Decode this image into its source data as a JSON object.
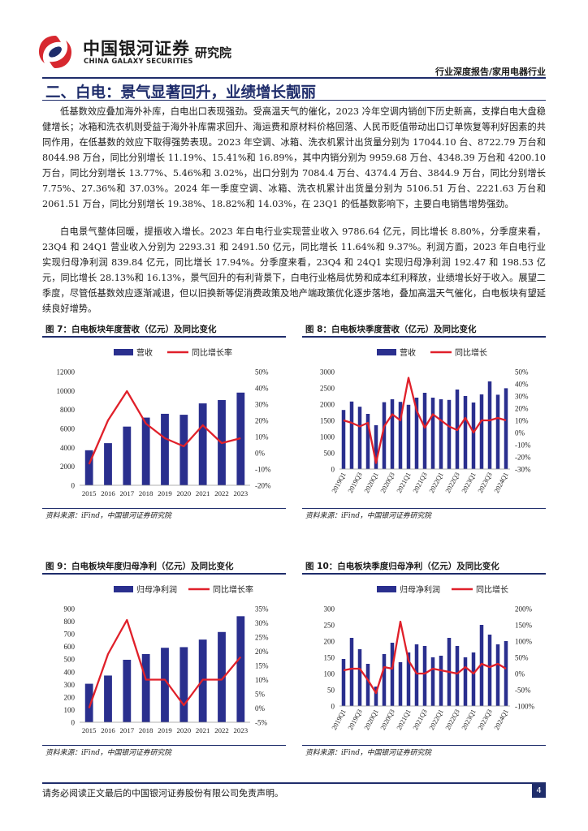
{
  "header": {
    "brand_cn": "中国银河证券",
    "brand_en": "CHINA GALAXY SECURITIES",
    "brand_sub": "研究院",
    "report_type": "行业深度报告/家用电器行业"
  },
  "section": {
    "title": "二、白电：景气显著回升，业绩增长靓丽"
  },
  "paragraphs": [
    "低基数效应叠加海外补库，白电出口表现强劲。受高温天气的催化，2023 冷年空调内销创下历史新高，支撑白电大盘稳健增长；冰箱和洗衣机则受益于海外补库需求回升、海运费和原材料价格回落、人民币贬值带动出口订单恢复等利好因素的共同作用，在低基数的效应下取得强势表现。2023 年空调、冰箱、洗衣机累计出货量分别为 17044.10 台、8722.79 万台和 8044.98 万台，同比分别增长 11.19%、15.41%和 16.89%，其中内销分别为 9959.68 万台、4348.39 万台和 4200.10 万台，同比分别增长 13.77%、5.46%和 3.02%，出口分别为 7084.4 万台、4374.4 万台、3844.9 万台，同比分别增长 7.75%、27.36%和 37.03%。2024 年一季度空调、冰箱、洗衣机累计出货量分别为 5106.51 万台、2221.63 万台和 2061.51 万台，同比分别增长 19.38%、18.82%和 14.03%，在 23Q1 的低基数影响下，主要白电销售增势强劲。",
    "白电景气整体回暖，提振收入增长。2023 年白电行业实现营业收入 9786.64 亿元，同比增长 8.80%，分季度来看，23Q4 和 24Q1 营业收入分别为 2293.31 和 2491.50 亿元，同比增长 11.64%和 9.37%。利润方面，2023 年白电行业实现归母净利润 839.84 亿元，同比增长 17.94%。分季度来看，23Q4 和 24Q1 实现归母净利润 192.47 和 198.53 亿元，同比增长 28.13%和 16.13%，景气回升的有利背景下，白电行业格局优势和成本红利释放，业绩增长好于收入。展望二季度，尽管低基数效应逐渐减退，但以旧换新等促消费政策及地产端政策优化逐步落地，叠加高温天气催化，白电板块有望延续良好增势。"
  ],
  "charts": [
    {
      "title": "图 7：白电板块年度营收（亿元）及同比变化",
      "source": "资料来源：iFind，中国银河证券研究院",
      "legend_bar": "营收",
      "legend_line": "同比增长率",
      "chart_data": {
        "type": "bar+line",
        "categories": [
          "2015",
          "2016",
          "2017",
          "2018",
          "2019",
          "2020",
          "2021",
          "2022",
          "2023"
        ],
        "bar_values": [
          3700,
          4450,
          6200,
          7150,
          7550,
          7450,
          8650,
          9000,
          9790
        ],
        "line_values": [
          -7,
          20,
          38,
          18,
          9,
          4,
          17,
          6,
          9
        ],
        "ylim_left": [
          0,
          12000
        ],
        "yticks_left": [
          "0",
          "2000",
          "4000",
          "6000",
          "8000",
          "10000",
          "12000"
        ],
        "ylim_right": [
          -20,
          50
        ],
        "yticks_right": [
          "-20%",
          "-10%",
          "0%",
          "10%",
          "20%",
          "30%",
          "40%",
          "50%"
        ]
      }
    },
    {
      "title": "图 8：白电板块季度营收（亿元）及同比变化",
      "source": "资料来源：iFind，中国银河证券研究院",
      "legend_bar": "营收",
      "legend_line": "同比增长",
      "chart_data": {
        "type": "bar+line",
        "categories": [
          "2019Q1",
          "2019Q2",
          "2019Q3",
          "2019Q4",
          "2020Q1",
          "2020Q2",
          "2020Q3",
          "2020Q4",
          "2021Q1",
          "2021Q2",
          "2021Q3",
          "2021Q4",
          "2022Q1",
          "2022Q2",
          "2022Q3",
          "2022Q4",
          "2023Q1",
          "2023Q2",
          "2023Q3",
          "2023Q4",
          "2024Q1"
        ],
        "x_tick_labels": [
          "2019Q1",
          "",
          "2019Q3",
          "",
          "2020Q1",
          "",
          "2020Q3",
          "",
          "2021Q1",
          "",
          "2021Q3",
          "",
          "2022Q1",
          "",
          "2022Q3",
          "",
          "2023Q1",
          "",
          "2023Q3",
          "",
          "2024Q1"
        ],
        "bar_values": [
          1820,
          2080,
          1920,
          1700,
          1350,
          2060,
          2150,
          2070,
          1980,
          2200,
          2350,
          2200,
          2150,
          2130,
          2450,
          2250,
          2050,
          2300,
          2700,
          2290,
          2490
        ],
        "line_values": [
          10,
          8,
          5,
          8,
          -25,
          5,
          15,
          10,
          45,
          18,
          4,
          15,
          10,
          5,
          2,
          12,
          0,
          10,
          10,
          12,
          10
        ],
        "ylim_left": [
          0,
          3000
        ],
        "yticks_left": [
          "0",
          "500",
          "1000",
          "1500",
          "2000",
          "2500",
          "3000"
        ],
        "ylim_right": [
          -30,
          50
        ],
        "yticks_right": [
          "-30%",
          "-20%",
          "-10%",
          "0%",
          "10%",
          "20%",
          "30%",
          "40%",
          "50%"
        ]
      }
    },
    {
      "title": "图 9：白电板块年度归母净利（亿元）及同比变化",
      "source": "资料来源：iFind，中国银河证券研究院",
      "legend_bar": "归母净利润",
      "legend_line": "同比增长率",
      "chart_data": {
        "type": "bar+line",
        "categories": [
          "2015",
          "2016",
          "2017",
          "2018",
          "2019",
          "2020",
          "2021",
          "2022",
          "2023"
        ],
        "bar_values": [
          305,
          370,
          495,
          540,
          590,
          595,
          655,
          715,
          840
        ],
        "line_values": [
          0,
          19,
          31,
          10,
          10,
          1,
          10,
          10,
          18
        ],
        "ylim_left": [
          0,
          900
        ],
        "yticks_left": [
          "0",
          "100",
          "200",
          "300",
          "400",
          "500",
          "600",
          "700",
          "800",
          "900"
        ],
        "ylim_right": [
          -5,
          35
        ],
        "yticks_right": [
          "-5%",
          "0%",
          "5%",
          "10%",
          "15%",
          "20%",
          "25%",
          "30%",
          "35%"
        ]
      }
    },
    {
      "title": "图 10：白电板块季度归母净利（亿元）及同比变化",
      "source": "资料来源：iFind，中国银河证券研究院",
      "legend_bar": "归母净利润",
      "legend_line": "同比增长",
      "chart_data": {
        "type": "bar+line",
        "categories": [
          "2019Q1",
          "2019Q2",
          "2019Q3",
          "2019Q4",
          "2020Q1",
          "2020Q2",
          "2020Q3",
          "2020Q4",
          "2021Q1",
          "2021Q2",
          "2021Q3",
          "2021Q4",
          "2022Q1",
          "2022Q2",
          "2022Q3",
          "2022Q4",
          "2023Q1",
          "2023Q2",
          "2023Q3",
          "2023Q4",
          "2024Q1"
        ],
        "x_tick_labels": [
          "2019Q1",
          "",
          "2019Q3",
          "",
          "2020Q1",
          "",
          "2020Q3",
          "",
          "2021Q1",
          "",
          "2021Q3",
          "",
          "2022Q1",
          "",
          "2022Q3",
          "",
          "2023Q1",
          "",
          "2023Q3",
          "",
          "2024Q1"
        ],
        "bar_values": [
          145,
          210,
          175,
          130,
          60,
          160,
          195,
          135,
          165,
          190,
          185,
          150,
          155,
          210,
          185,
          150,
          165,
          250,
          220,
          190,
          200
        ],
        "line_values": [
          10,
          15,
          15,
          -20,
          -60,
          20,
          15,
          160,
          40,
          0,
          0,
          15,
          10,
          5,
          0,
          20,
          0,
          30,
          20,
          30,
          15
        ],
        "ylim_left": [
          0,
          300
        ],
        "yticks_left": [
          "0",
          "50",
          "100",
          "150",
          "200",
          "250",
          "300"
        ],
        "ylim_right": [
          -100,
          200
        ],
        "yticks_right": [
          "-100%",
          "-50%",
          "0%",
          "50%",
          "100%",
          "150%",
          "200%"
        ]
      }
    }
  ],
  "footer": {
    "disclaimer": "请务必阅读正文最后的中国银河证券股份有限公司免责声明。",
    "page_number": "4"
  },
  "colors": {
    "navy": "#1f2d6b",
    "bar": "#2a2f8e",
    "line": "#e0202a",
    "brand_red": "#d7282f"
  }
}
